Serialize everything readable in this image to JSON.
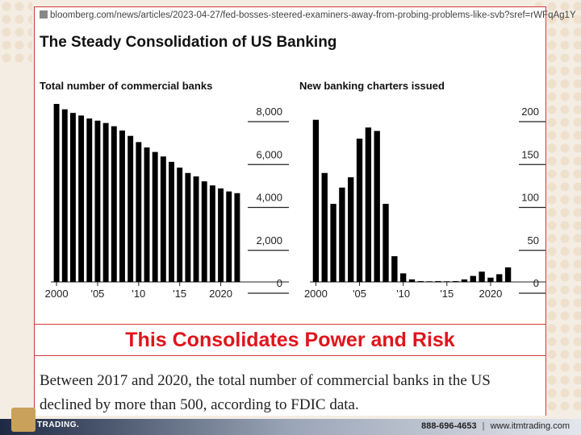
{
  "browser": {
    "url": "bloomberg.com/news/articles/2023-04-27/fed-bosses-steered-examiners-away-from-probing-problems-like-svb?sref=rWFqAg1Y"
  },
  "article": {
    "title": "The Steady Consolidation of US Banking"
  },
  "banner": {
    "text": "This Consolidates Power and Risk"
  },
  "caption": {
    "text": "Between 2017 and 2020, the total number of commercial banks in the US declined by more than 500, according to FDIC data."
  },
  "footer": {
    "phone": "888-696-4653",
    "separator": "|",
    "website": "www.itmtrading.com",
    "logo_text": "TRADING."
  },
  "chart_data": [
    {
      "type": "bar",
      "title": "Total number of commercial banks",
      "x": [
        2000,
        2001,
        2002,
        2003,
        2004,
        2005,
        2006,
        2007,
        2008,
        2009,
        2010,
        2011,
        2012,
        2013,
        2014,
        2015,
        2016,
        2017,
        2018,
        2019,
        2020,
        2021,
        2022
      ],
      "values": [
        8300,
        8050,
        7880,
        7760,
        7620,
        7520,
        7410,
        7260,
        7060,
        6810,
        6520,
        6270,
        6060,
        5850,
        5600,
        5330,
        5080,
        4920,
        4690,
        4500,
        4360,
        4220,
        4140
      ],
      "x_ticks": [
        2000,
        2005,
        2010,
        2015,
        2020
      ],
      "x_tick_labels": [
        "2000",
        "'05",
        "'10",
        "'15",
        "2020"
      ],
      "y_ticks": [
        0,
        2000,
        4000,
        6000,
        8000
      ],
      "y_tick_labels": [
        "0",
        "2,000",
        "4,000",
        "6,000",
        "8,000"
      ],
      "ylim": [
        0,
        8000
      ],
      "y_axis_position": "right",
      "bar_color": "#000000"
    },
    {
      "type": "bar",
      "title": "New banking charters issued",
      "x": [
        2000,
        2001,
        2002,
        2003,
        2004,
        2005,
        2006,
        2007,
        2008,
        2009,
        2010,
        2011,
        2012,
        2013,
        2014,
        2015,
        2016,
        2017,
        2018,
        2019,
        2020,
        2021,
        2022
      ],
      "values": [
        189,
        127,
        91,
        110,
        122,
        167,
        180,
        176,
        91,
        30,
        10,
        3,
        1,
        0,
        1,
        0,
        1,
        3,
        7,
        12,
        5,
        9,
        17
      ],
      "x_ticks": [
        2000,
        2005,
        2010,
        2015,
        2020
      ],
      "x_tick_labels": [
        "2000",
        "'05",
        "'10",
        "'15",
        "2020"
      ],
      "y_ticks": [
        0,
        50,
        100,
        150,
        200
      ],
      "y_tick_labels": [
        "0",
        "50",
        "100",
        "150",
        "200"
      ],
      "ylim": [
        0,
        200
      ],
      "y_axis_position": "right",
      "bar_color": "#000000"
    }
  ]
}
